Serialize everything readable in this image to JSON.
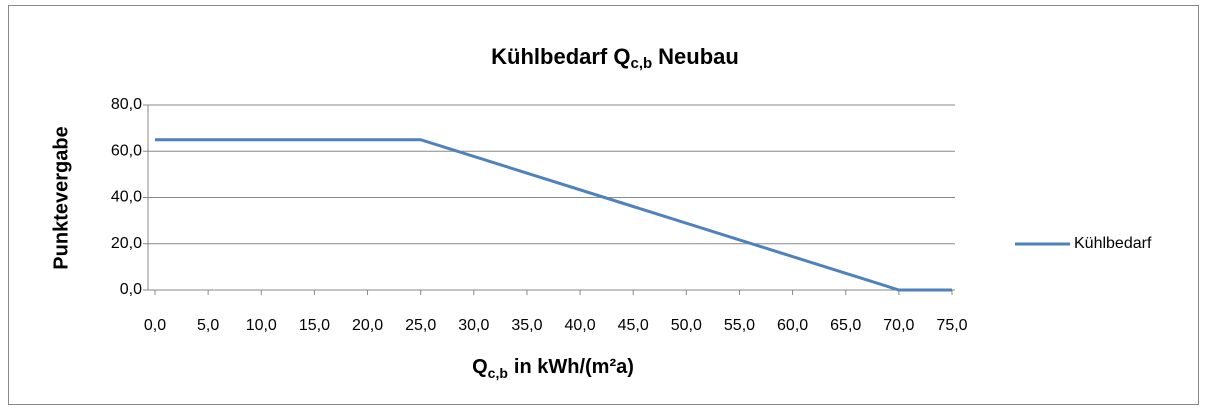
{
  "chart_data": {
    "type": "line",
    "title": [
      "Kühlbedarf Q",
      "c,b",
      "Neubau"
    ],
    "x_label": [
      "Q",
      "c,b",
      "in kWh/(m²a)"
    ],
    "y_label": "Punktevergabe",
    "x": [
      0,
      25,
      70,
      75
    ],
    "series": [
      {
        "name": "Kühlbedarf",
        "color": "#4f81bd",
        "values": [
          65,
          65,
          0,
          0
        ]
      }
    ],
    "xlim": [
      0,
      75
    ],
    "xticks": [
      {
        "value": 0,
        "label": "0,0"
      },
      {
        "value": 5,
        "label": "5,0"
      },
      {
        "value": 10,
        "label": "10,0"
      },
      {
        "value": 15,
        "label": "15,0"
      },
      {
        "value": 20,
        "label": "20,0"
      },
      {
        "value": 25,
        "label": "25,0"
      },
      {
        "value": 30,
        "label": "30,0"
      },
      {
        "value": 35,
        "label": "35,0"
      },
      {
        "value": 40,
        "label": "40,0"
      },
      {
        "value": 45,
        "label": "45,0"
      },
      {
        "value": 50,
        "label": "50,0"
      },
      {
        "value": 55,
        "label": "55,0"
      },
      {
        "value": 60,
        "label": "60,0"
      },
      {
        "value": 65,
        "label": "65,0"
      },
      {
        "value": 70,
        "label": "70,0"
      },
      {
        "value": 75,
        "label": "75,0"
      }
    ],
    "ylim": [
      0,
      80
    ],
    "yticks": [
      {
        "value": 0,
        "label": "0,0"
      },
      {
        "value": 20,
        "label": "20,0"
      },
      {
        "value": 40,
        "label": "40,0"
      },
      {
        "value": 60,
        "label": "60,0"
      },
      {
        "value": 80,
        "label": "80,0"
      }
    ],
    "grid": true,
    "legend": "right"
  }
}
